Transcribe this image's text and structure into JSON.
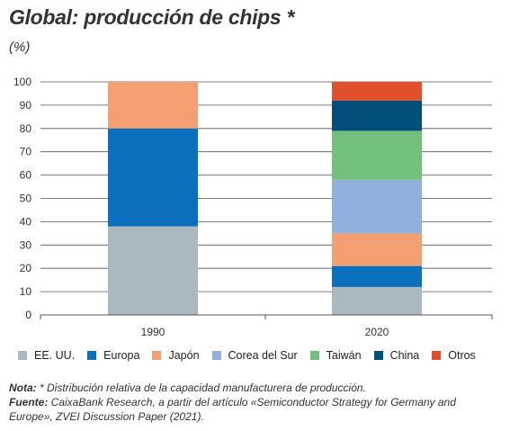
{
  "title": "Global: producción de chips *",
  "subtitle": "(%)",
  "colors": {
    "grid": "#555555",
    "axis": "#555555"
  },
  "chart_data": {
    "type": "bar",
    "stacked": true,
    "categories": [
      "1990",
      "2020"
    ],
    "ylim": [
      0,
      100
    ],
    "yticks": [
      "0",
      "10",
      "20",
      "30",
      "40",
      "50",
      "60",
      "70",
      "80",
      "90",
      "100"
    ],
    "grid": true,
    "legend_placement": "bottom",
    "series": [
      {
        "name": "EE. UU.",
        "color": "#a9b9bf",
        "values": [
          38,
          12
        ]
      },
      {
        "name": "Europa",
        "color": "#0a6fbd",
        "values": [
          42,
          9
        ]
      },
      {
        "name": "Japón",
        "color": "#f49f72",
        "values": [
          20,
          14
        ]
      },
      {
        "name": "Corea del Sur",
        "color": "#92b0de",
        "values": [
          0,
          23
        ]
      },
      {
        "name": "Taiwán",
        "color": "#73c07d",
        "values": [
          0,
          21
        ]
      },
      {
        "name": "China",
        "color": "#004e79",
        "values": [
          0,
          13
        ]
      },
      {
        "name": "Otros",
        "color": "#e2502b",
        "values": [
          0,
          8
        ]
      }
    ]
  },
  "notes": {
    "nota_label": "Nota:",
    "nota_text": " * Distribución relativa de la capacidad manufacturera de producción.",
    "fuente_label": "Fuente:",
    "fuente_text": " CaixaBank Research, a partir del artículo «Semiconductor Strategy for Germany and Europe», ZVEI Discussion Paper (2021)."
  }
}
